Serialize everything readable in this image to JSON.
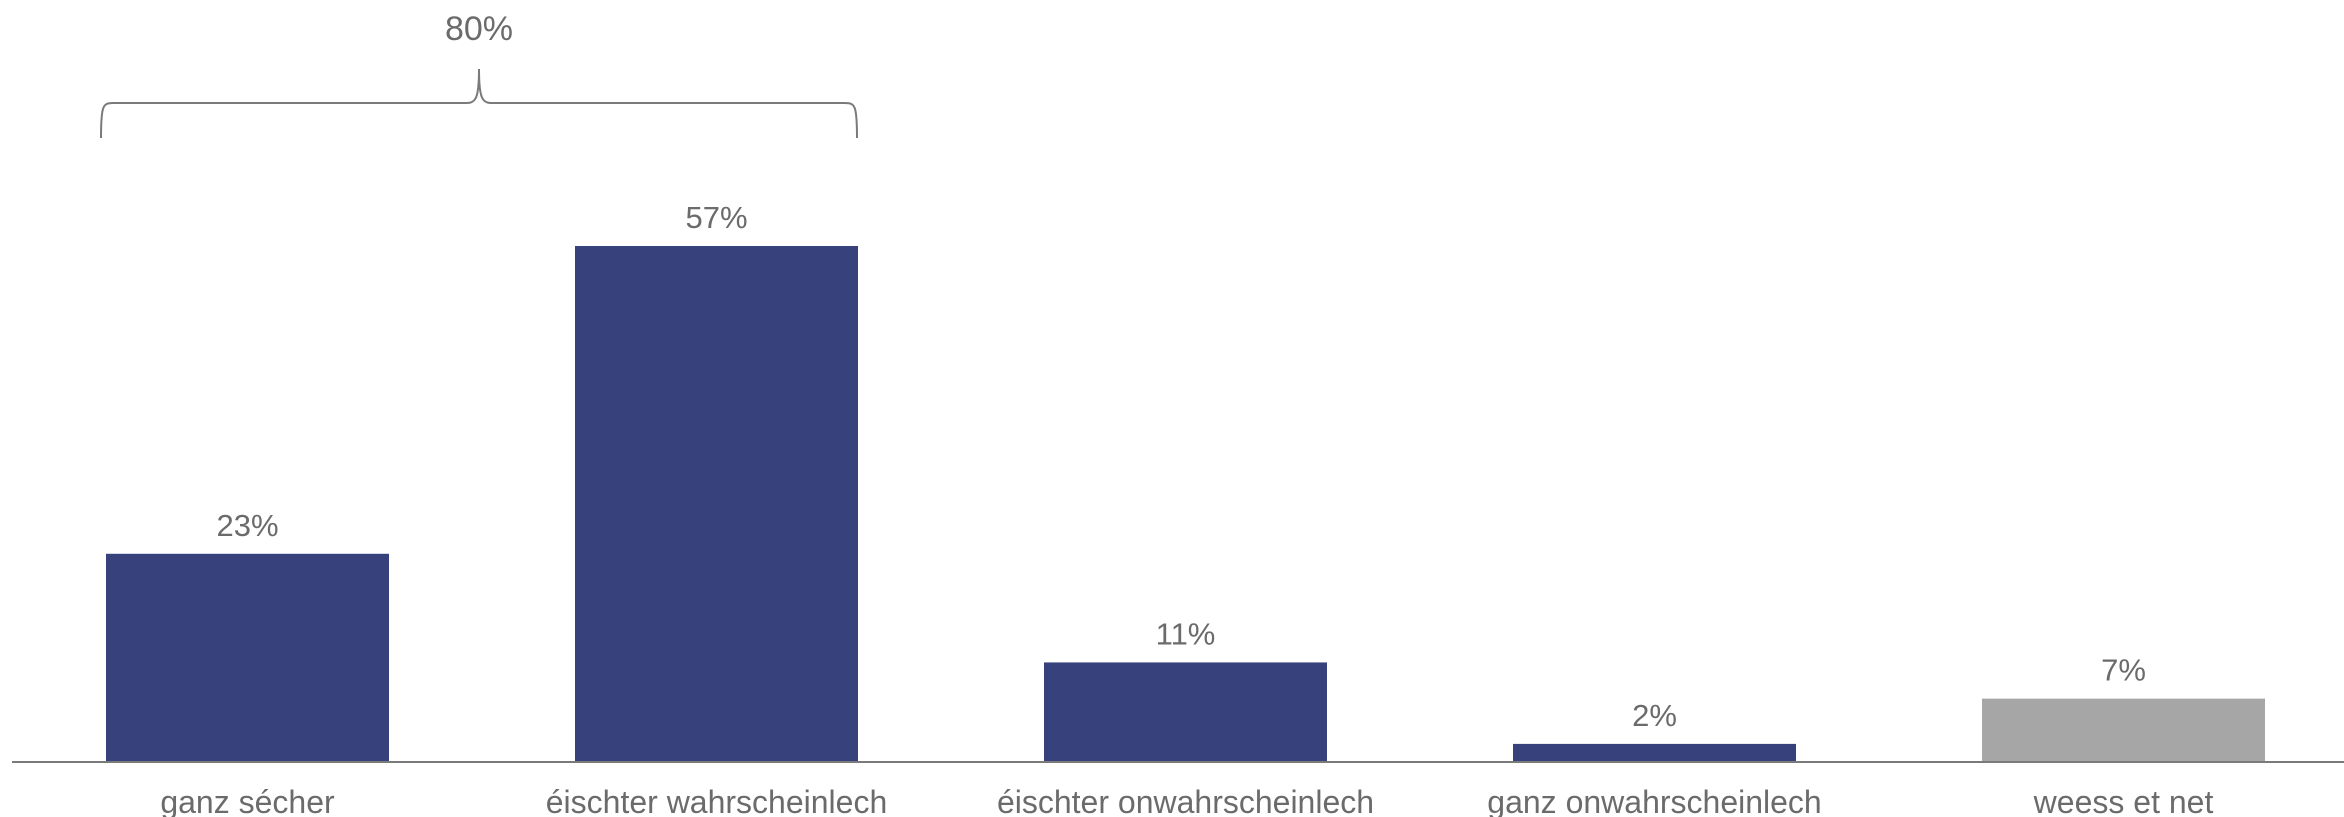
{
  "chart_data": {
    "type": "bar",
    "categories": [
      "ganz sécher",
      "éischter wahrscheinlech",
      "éischter onwahrscheinlech",
      "ganz onwahrscheinlech",
      "weess et net"
    ],
    "values": [
      23,
      57,
      11,
      2,
      7
    ],
    "value_labels": [
      "23%",
      "57%",
      "11%",
      "2%",
      "7%"
    ],
    "colors": [
      "#37417b",
      "#37417b",
      "#37417b",
      "#37417b",
      "#a6a6a6"
    ],
    "ylim": [
      0,
      70
    ],
    "grid": false,
    "title": "",
    "xlabel": "",
    "ylabel": "",
    "annotations": [
      {
        "text": "80%",
        "spans_categories": [
          0,
          1
        ]
      }
    ]
  }
}
